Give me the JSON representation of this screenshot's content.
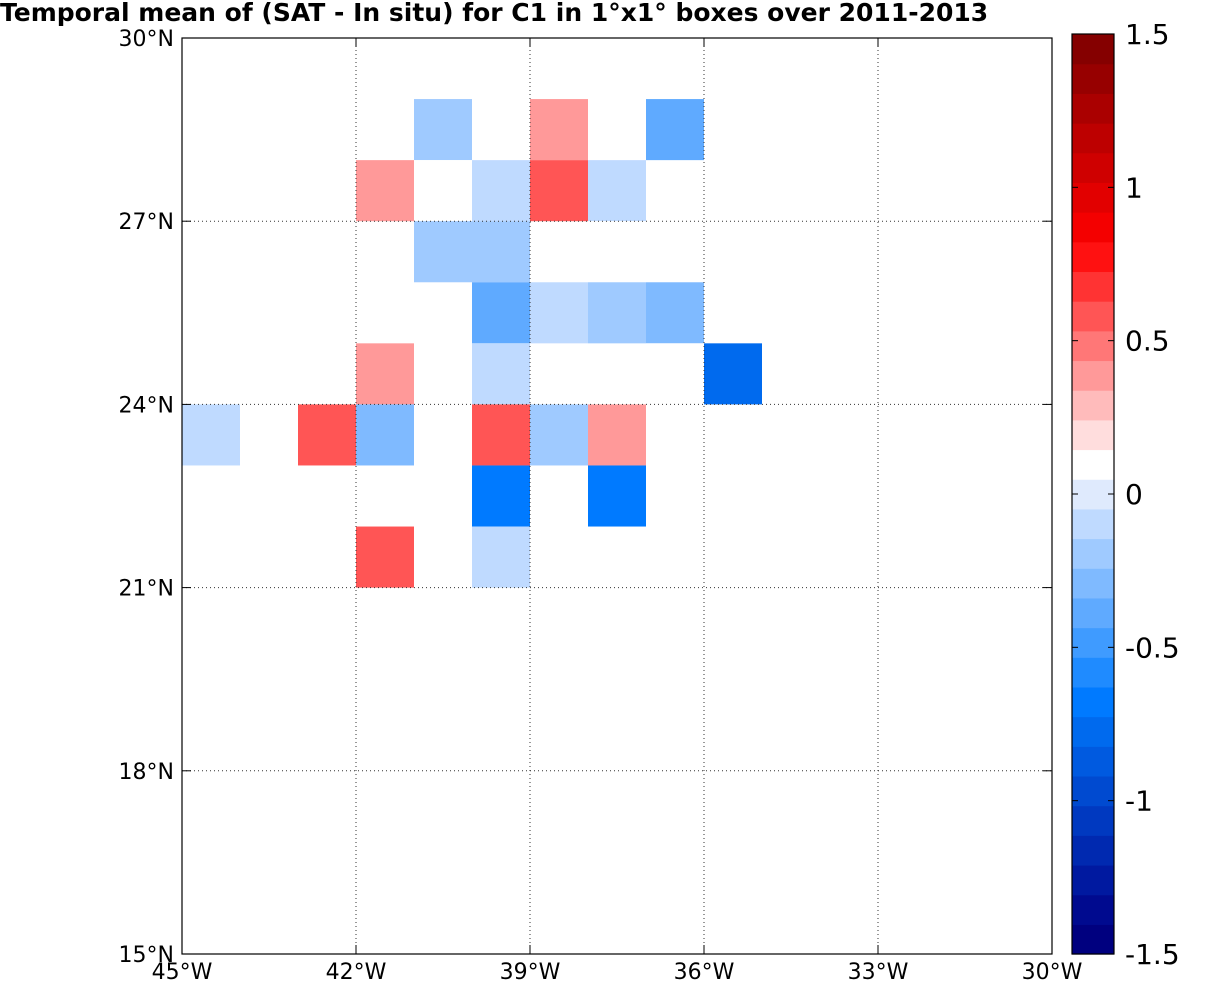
{
  "chart_data": {
    "type": "heatmap",
    "title": "Temporal mean of (SAT - In situ) for C1 in 1°x1° boxes over 2011-2013",
    "xlim": [
      -45,
      -30
    ],
    "ylim": [
      15,
      30
    ],
    "x_ticks": [
      {
        "value": -45,
        "label": "45°W"
      },
      {
        "value": -42,
        "label": "42°W"
      },
      {
        "value": -39,
        "label": "39°W"
      },
      {
        "value": -36,
        "label": "36°W"
      },
      {
        "value": -33,
        "label": "33°W"
      },
      {
        "value": -30,
        "label": "30°W"
      }
    ],
    "y_ticks": [
      {
        "value": 15,
        "label": "15°N"
      },
      {
        "value": 18,
        "label": "18°N"
      },
      {
        "value": 21,
        "label": "21°N"
      },
      {
        "value": 24,
        "label": "24°N"
      },
      {
        "value": 27,
        "label": "27°N"
      },
      {
        "value": 30,
        "label": "30°N"
      }
    ],
    "grid": true,
    "box_size_deg": 1,
    "colorbar": {
      "min": -1.5,
      "max": 1.5,
      "step": 0.1,
      "ticks": [
        {
          "value": 1.5,
          "label": "1.5"
        },
        {
          "value": 1,
          "label": "1"
        },
        {
          "value": 0.5,
          "label": "0.5"
        },
        {
          "value": 0,
          "label": "0"
        },
        {
          "value": -0.5,
          "label": "-0.5"
        },
        {
          "value": -1,
          "label": "-1"
        },
        {
          "value": -1.5,
          "label": "-1.5"
        }
      ],
      "colors": [
        "#00007f",
        "#000a8f",
        "#0019a0",
        "#0029b0",
        "#0039c0",
        "#004ad0",
        "#005ae0",
        "#006aee",
        "#007aff",
        "#1f8bff",
        "#3f9bff",
        "#5faaff",
        "#7fbaff",
        "#9fcaff",
        "#bfdaff",
        "#dfeafd",
        "#ffffff",
        "#ffdddd",
        "#ffbbbb",
        "#ff9999",
        "#ff7777",
        "#ff5555",
        "#ff3333",
        "#ff1111",
        "#f40000",
        "#e20000",
        "#cf0000",
        "#bd0000",
        "#aa0000",
        "#970000",
        "#850000"
      ]
    },
    "boxes": [
      {
        "lon": -40.5,
        "lat": 28.5,
        "value": -0.2
      },
      {
        "lon": -38.5,
        "lat": 28.5,
        "value": 0.4
      },
      {
        "lon": -36.5,
        "lat": 28.5,
        "value": -0.4
      },
      {
        "lon": -43.5,
        "lat": 27.5,
        "value": 0.1
      },
      {
        "lon": -41.5,
        "lat": 27.5,
        "value": 0.4
      },
      {
        "lon": -40.5,
        "lat": 27.5,
        "value": 0.1
      },
      {
        "lon": -39.5,
        "lat": 27.5,
        "value": -0.1
      },
      {
        "lon": -38.5,
        "lat": 27.5,
        "value": 0.6
      },
      {
        "lon": -37.5,
        "lat": 27.5,
        "value": -0.1
      },
      {
        "lon": -40.5,
        "lat": 26.5,
        "value": -0.2
      },
      {
        "lon": -39.5,
        "lat": 26.5,
        "value": -0.2
      },
      {
        "lon": -37.5,
        "lat": 26.5,
        "value": 0.1
      },
      {
        "lon": -41.5,
        "lat": 25.5,
        "value": 0.1
      },
      {
        "lon": -39.5,
        "lat": 25.5,
        "value": -0.4
      },
      {
        "lon": -38.5,
        "lat": 25.5,
        "value": -0.1
      },
      {
        "lon": -37.5,
        "lat": 25.5,
        "value": -0.2
      },
      {
        "lon": -36.5,
        "lat": 25.5,
        "value": -0.3
      },
      {
        "lon": -41.5,
        "lat": 24.5,
        "value": 0.4
      },
      {
        "lon": -39.5,
        "lat": 24.5,
        "value": -0.1
      },
      {
        "lon": -36.5,
        "lat": 24.5,
        "value": 0.1
      },
      {
        "lon": -35.5,
        "lat": 24.5,
        "value": -0.8
      },
      {
        "lon": -44.5,
        "lat": 23.5,
        "value": -0.1
      },
      {
        "lon": -42.5,
        "lat": 23.5,
        "value": 0.6
      },
      {
        "lon": -41.5,
        "lat": 23.5,
        "value": -0.3
      },
      {
        "lon": -39.5,
        "lat": 23.5,
        "value": 0.6
      },
      {
        "lon": -38.5,
        "lat": 23.5,
        "value": -0.2
      },
      {
        "lon": -37.5,
        "lat": 23.5,
        "value": 0.4
      },
      {
        "lon": -39.5,
        "lat": 22.5,
        "value": -0.7
      },
      {
        "lon": -37.5,
        "lat": 22.5,
        "value": -0.7
      },
      {
        "lon": -41.5,
        "lat": 21.5,
        "value": 0.6
      },
      {
        "lon": -39.5,
        "lat": 21.5,
        "value": -0.1
      }
    ]
  }
}
